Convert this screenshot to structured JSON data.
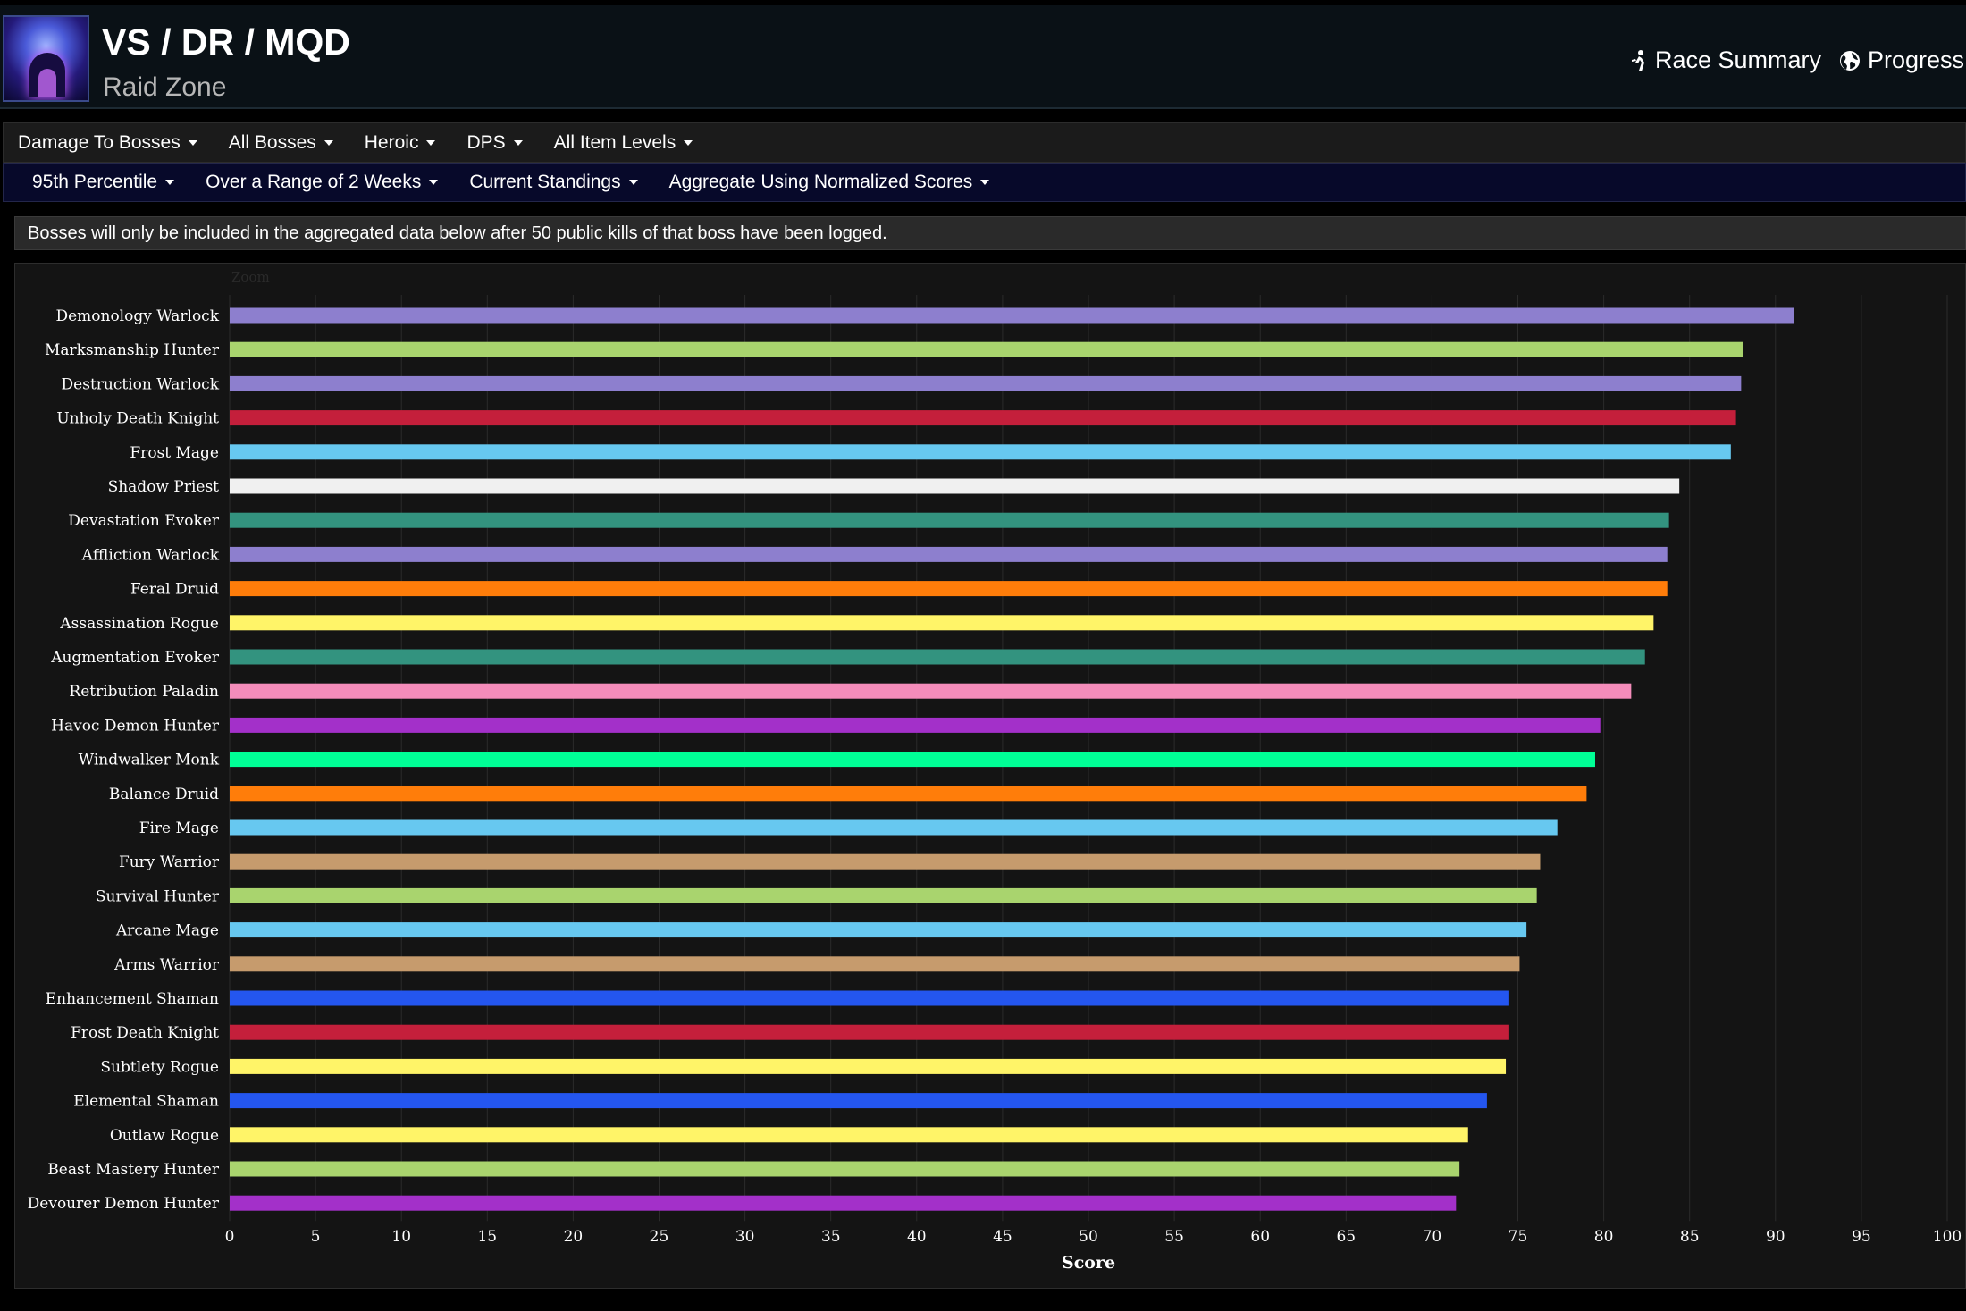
{
  "header": {
    "title": "VS / DR / MQD",
    "subtitle": "Raid Zone",
    "links": [
      {
        "label": "Race Summary",
        "icon": "running-person-icon"
      },
      {
        "label": "Progress",
        "icon": "globe-icon"
      }
    ]
  },
  "filters": {
    "row1": [
      "Damage To Bosses",
      "All Bosses",
      "Heroic",
      "DPS",
      "All Item Levels"
    ],
    "row2": [
      "95th Percentile",
      "Over a Range of 2 Weeks",
      "Current Standings",
      "Aggregate Using Normalized Scores"
    ]
  },
  "notice": "Bosses will only be included in the aggregated data below after 50 public kills of that boss have been logged.",
  "chart_data": {
    "type": "bar",
    "orientation": "horizontal",
    "zoom_label": "Zoom",
    "xlabel": "Score",
    "xlim": [
      0,
      100
    ],
    "xticks": [
      0,
      5,
      10,
      15,
      20,
      25,
      30,
      35,
      40,
      45,
      50,
      55,
      60,
      65,
      70,
      75,
      80,
      85,
      90,
      95,
      100
    ],
    "grid": true,
    "categories": [
      "Demonology Warlock",
      "Marksmanship Hunter",
      "Destruction Warlock",
      "Unholy Death Knight",
      "Frost Mage",
      "Shadow Priest",
      "Devastation Evoker",
      "Affliction Warlock",
      "Feral Druid",
      "Assassination Rogue",
      "Augmentation Evoker",
      "Retribution Paladin",
      "Havoc Demon Hunter",
      "Windwalker Monk",
      "Balance Druid",
      "Fire Mage",
      "Fury Warrior",
      "Survival Hunter",
      "Arcane Mage",
      "Arms Warrior",
      "Enhancement Shaman",
      "Frost Death Knight",
      "Subtlety Rogue",
      "Elemental Shaman",
      "Outlaw Rogue",
      "Beast Mastery Hunter",
      "Devourer Demon Hunter"
    ],
    "values": [
      91.1,
      88.1,
      88.0,
      87.7,
      87.4,
      84.4,
      83.8,
      83.7,
      83.7,
      82.9,
      82.4,
      81.6,
      79.8,
      79.5,
      79.0,
      77.3,
      76.3,
      76.1,
      75.5,
      75.1,
      74.5,
      74.5,
      74.3,
      73.2,
      72.1,
      71.6,
      71.4
    ],
    "colors": [
      "#8d7fce",
      "#a9d46e",
      "#8d7fce",
      "#c41f3b",
      "#67c8f0",
      "#f0f0f0",
      "#33937f",
      "#8d7fce",
      "#ff7d0a",
      "#fff468",
      "#33937f",
      "#f48cba",
      "#a330c9",
      "#00ff96",
      "#ff7d0a",
      "#67c8f0",
      "#c69b6d",
      "#a9d46e",
      "#67c8f0",
      "#c69b6d",
      "#2456ef",
      "#c41f3b",
      "#fff468",
      "#2456ef",
      "#fff468",
      "#a9d46e",
      "#a330c9"
    ]
  }
}
